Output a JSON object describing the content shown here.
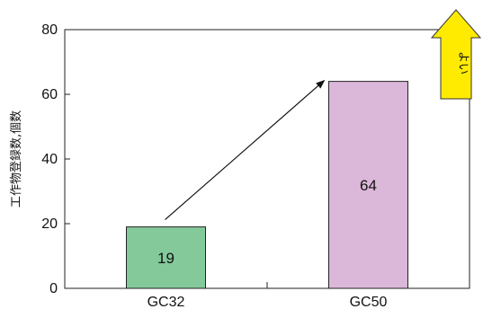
{
  "chart_data": {
    "type": "bar",
    "categories": [
      "GC32",
      "GC50"
    ],
    "values": [
      19,
      64
    ],
    "data_labels": [
      "19",
      "64"
    ],
    "bar_colors": [
      "#84c99a",
      "#dbb7d9"
    ],
    "ylabel": "工作物登録数,個数",
    "ylim": [
      0,
      80
    ],
    "yticks": [
      0,
      20,
      40,
      60,
      80
    ],
    "grid": false,
    "annotation": {
      "text": "よい",
      "color": "#ffeb00",
      "direction": "up"
    },
    "trend_arrow": {
      "from": "GC32",
      "to": "GC50"
    }
  }
}
